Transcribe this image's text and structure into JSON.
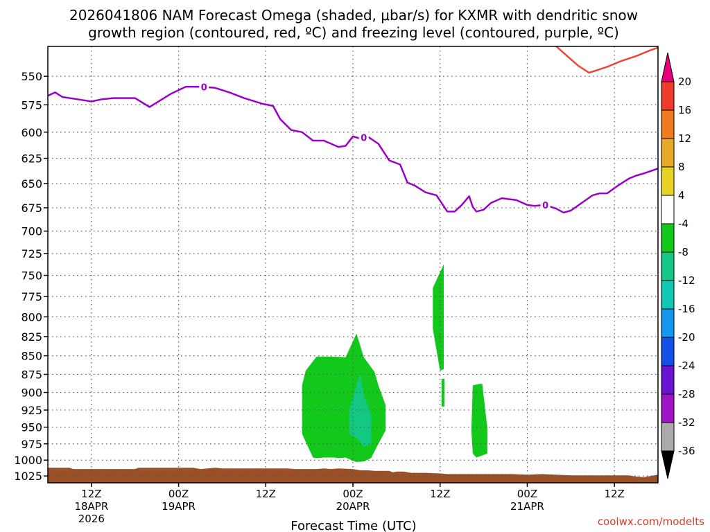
{
  "chart_data": {
    "type": "time-height contour",
    "title_line1": "2026041806 NAM Forecast Omega (shaded, μbar/s) for KXMR with dendritic snow",
    "title_line2": "growth region (contoured, red, ºC) and freezing level (contoured, purple, ºC)",
    "xlabel": "Forecast Time (UTC)",
    "credit": "coolwx.com/modelts",
    "x_range_hours": [
      0,
      84
    ],
    "y_range_hPa": [
      525,
      1036
    ],
    "y_ticks": [
      550,
      575,
      600,
      625,
      650,
      675,
      700,
      725,
      750,
      775,
      800,
      825,
      850,
      875,
      900,
      925,
      950,
      975,
      1000,
      1025
    ],
    "x_ticks": [
      {
        "hour": 6,
        "label": "12Z",
        "sub1": "18APR",
        "sub2": "2026"
      },
      {
        "hour": 18,
        "label": "00Z",
        "sub1": "19APR",
        "sub2": ""
      },
      {
        "hour": 30,
        "label": "12Z",
        "sub1": "",
        "sub2": ""
      },
      {
        "hour": 42,
        "label": "00Z",
        "sub1": "20APR",
        "sub2": ""
      },
      {
        "hour": 54,
        "label": "12Z",
        "sub1": "",
        "sub2": ""
      },
      {
        "hour": 66,
        "label": "00Z",
        "sub1": "21APR",
        "sub2": ""
      },
      {
        "hour": 78,
        "label": "12Z",
        "sub1": "",
        "sub2": ""
      }
    ],
    "colorbar": {
      "ticks": [
        "20",
        "16",
        "12",
        "8",
        "4",
        "-4",
        "-8",
        "-12",
        "-16",
        "-20",
        "-24",
        "-28",
        "-32",
        "-36"
      ],
      "colors": [
        "#e8007a",
        "#ee3c2c",
        "#f07a1e",
        "#e8a828",
        "#e8d228",
        "#ffffff",
        "#12c81a",
        "#12c882",
        "#12c8b4",
        "#1296f0",
        "#1250e8",
        "#6a14d2",
        "#a014c8",
        "#aaaaaa",
        "#000000"
      ]
    },
    "freezing_level": {
      "color": "#9a00c8",
      "label": "0",
      "label_hours": [
        21.5,
        43.5,
        68.5
      ],
      "hours": [
        0,
        1,
        2,
        4,
        6,
        7.5,
        9,
        12,
        14,
        15,
        17,
        19,
        21,
        23,
        25,
        27,
        29.5,
        31,
        32,
        33.5,
        35,
        36.5,
        38,
        40,
        41,
        42,
        43,
        44,
        45.5,
        47,
        48.5,
        49.5,
        50.5,
        52,
        53.5,
        55,
        56,
        57,
        58,
        58.5,
        59,
        60,
        61,
        62.5,
        64.5,
        66,
        67,
        68.5,
        70,
        71,
        72,
        73.5,
        75,
        76,
        77,
        78.5,
        80,
        81,
        82,
        84
      ],
      "pressure": [
        567,
        564,
        568,
        570,
        572,
        570,
        569,
        569,
        577,
        573,
        565,
        559,
        559,
        560,
        564,
        569,
        574,
        576,
        588,
        598,
        600,
        608,
        608,
        614,
        613,
        604,
        606,
        604,
        611,
        627,
        631,
        649,
        652,
        659,
        662,
        679,
        679,
        672,
        663,
        674,
        679,
        677,
        670,
        665,
        667,
        672,
        673,
        672,
        676,
        680,
        678,
        670,
        662,
        660,
        660,
        652,
        645,
        642,
        640,
        635
      ]
    },
    "dgz_red_contour": {
      "color": "#ee4433",
      "hours": [
        70,
        73,
        74.5,
        75.5,
        77,
        79,
        81,
        83,
        84
      ],
      "pressure": [
        525,
        541,
        547,
        545,
        542,
        537,
        533,
        528,
        526
      ]
    },
    "omega_regions": [
      {
        "level": "-4 to -8",
        "color": "#12c81a",
        "hours": [
          35,
          35,
          36.5,
          37,
          38,
          39.5,
          40,
          41,
          42,
          42.5,
          43.5,
          44.5,
          45.5,
          46.5,
          46.5,
          45.5,
          45,
          43.5,
          42.5,
          41,
          39,
          37,
          35.5
        ],
        "pressure": [
          890,
          960,
          996,
          997,
          996,
          996,
          997,
          996,
          1001,
          1003,
          1002,
          997,
          975,
          955,
          918,
          890,
          872,
          852,
          821,
          852,
          851,
          851,
          870
        ]
      },
      {
        "level": "-8 to -12",
        "color": "#12c882",
        "hours": [
          41.5,
          41.5,
          42.5,
          43.5,
          44.5,
          44.5,
          43.5,
          43
        ],
        "pressure": [
          925,
          960,
          966,
          979,
          975,
          930,
          905,
          873
        ]
      },
      {
        "level": "-4 to -8",
        "color": "#12c81a",
        "hours": [
          53,
          53,
          54,
          54.5,
          54.5
        ],
        "pressure": [
          765,
          815,
          870,
          868,
          737
        ]
      },
      {
        "level": "-4 to -8",
        "color": "#12c81a",
        "hours": [
          54.2,
          54.2,
          54.6,
          54.6
        ],
        "pressure": [
          881,
          920,
          920,
          881
        ]
      },
      {
        "level": "-4 to -8",
        "color": "#12c81a",
        "hours": [
          58.5,
          58.3,
          58.5,
          59,
          60.5,
          60.5,
          59.8,
          59.5
        ],
        "pressure": [
          890,
          955,
          990,
          996,
          990,
          950,
          888,
          888
        ]
      }
    ],
    "terrain": {
      "color": "#9b5028",
      "hours": [
        0,
        3,
        3.5,
        12,
        12.5,
        20,
        21,
        22,
        23,
        24,
        33,
        34,
        37,
        38,
        39,
        40,
        42,
        43,
        44,
        45,
        46,
        47,
        47.5,
        48,
        49,
        50,
        52,
        54,
        55,
        57,
        58,
        60,
        62,
        64,
        66,
        68,
        70,
        72,
        74,
        76,
        78,
        80,
        81,
        82,
        83,
        84
      ],
      "pressure": [
        1012,
        1012,
        1014,
        1014,
        1012,
        1012,
        1014,
        1013,
        1012,
        1013,
        1013,
        1014,
        1014,
        1013,
        1014,
        1013,
        1014,
        1016,
        1016,
        1017,
        1017,
        1017,
        1019,
        1018,
        1018,
        1020,
        1020,
        1021,
        1022,
        1022,
        1022,
        1022,
        1022,
        1022,
        1023,
        1022,
        1023,
        1024,
        1024,
        1024,
        1024,
        1024,
        1026,
        1027,
        1025,
        1023
      ]
    }
  }
}
